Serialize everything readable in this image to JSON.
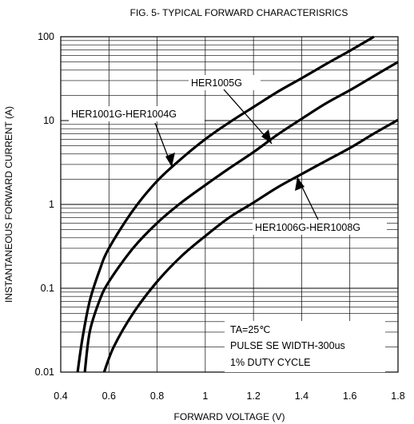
{
  "chart_data": {
    "type": "line",
    "title": "FIG. 5- TYPICAL FORWARD CHARACTERISRICS",
    "xlabel": "FORWARD VOLTAGE (V)",
    "ylabel": "INSTANTANEOUS FORWARD CURRENT (A)",
    "xlim": [
      0.4,
      1.8
    ],
    "ylim": [
      0.01,
      100
    ],
    "yscale": "log",
    "grid": true,
    "x_ticks": [
      {
        "v": 0.4,
        "label": "0.4"
      },
      {
        "v": 0.6,
        "label": "0.6"
      },
      {
        "v": 0.8,
        "label": "0.8"
      },
      {
        "v": 1.0,
        "label": "1"
      },
      {
        "v": 1.2,
        "label": "1.2"
      },
      {
        "v": 1.4,
        "label": "1.4"
      },
      {
        "v": 1.6,
        "label": "1.6"
      },
      {
        "v": 1.8,
        "label": "1.8"
      }
    ],
    "y_ticks": [
      {
        "v": 0.01,
        "label": "0.01"
      },
      {
        "v": 0.1,
        "label": "0.1"
      },
      {
        "v": 1,
        "label": "1"
      },
      {
        "v": 10,
        "label": "10"
      },
      {
        "v": 100,
        "label": "100"
      }
    ],
    "series": [
      {
        "name": "HER1001G-HER1004G",
        "x": [
          0.47,
          0.49,
          0.52,
          0.56,
          0.6,
          0.7,
          0.8,
          0.9,
          1.0,
          1.1,
          1.2,
          1.3,
          1.4,
          1.5,
          1.6,
          1.7
        ],
        "y": [
          0.01,
          0.025,
          0.07,
          0.16,
          0.3,
          0.85,
          1.9,
          3.5,
          6.0,
          9.5,
          14.5,
          22,
          32,
          47,
          68,
          100
        ]
      },
      {
        "name": "HER1005G",
        "x": [
          0.5,
          0.52,
          0.56,
          0.6,
          0.7,
          0.8,
          0.9,
          1.0,
          1.1,
          1.2,
          1.3,
          1.4,
          1.5,
          1.6,
          1.7,
          1.8
        ],
        "y": [
          0.01,
          0.03,
          0.07,
          0.12,
          0.3,
          0.6,
          1.05,
          1.7,
          2.7,
          4.2,
          6.8,
          10.5,
          16,
          23,
          34,
          50
        ]
      },
      {
        "name": "HER1006G-HER1008G",
        "x": [
          0.58,
          0.62,
          0.7,
          0.8,
          0.9,
          1.0,
          1.1,
          1.2,
          1.3,
          1.4,
          1.5,
          1.6,
          1.7,
          1.8
        ],
        "y": [
          0.01,
          0.02,
          0.05,
          0.12,
          0.24,
          0.42,
          0.7,
          1.05,
          1.6,
          2.3,
          3.3,
          4.7,
          7.0,
          10.2
        ]
      }
    ],
    "annotations": [
      {
        "text": "HER1001G-HER1004G",
        "series": 0
      },
      {
        "text": "HER1005G",
        "series": 1
      },
      {
        "text": "HER1006G-HER1008G",
        "series": 2
      }
    ],
    "notes": [
      "TA=25℃",
      "PULSE SE WIDTH-300us",
      "1% DUTY CYCLE"
    ]
  }
}
